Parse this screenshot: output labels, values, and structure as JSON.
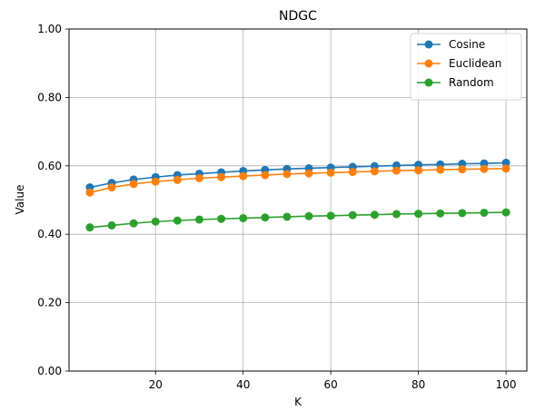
{
  "chart_data": {
    "type": "line",
    "title": "NDGC",
    "xlabel": "K",
    "ylabel": "Value",
    "x": [
      5,
      10,
      15,
      20,
      25,
      30,
      35,
      40,
      45,
      50,
      55,
      60,
      65,
      70,
      75,
      80,
      85,
      90,
      95,
      100
    ],
    "xlim": [
      0.25,
      104.75
    ],
    "ylim": [
      0.0,
      1.0
    ],
    "xticks": [
      20,
      40,
      60,
      80,
      100
    ],
    "xtick_labels": [
      "20",
      "40",
      "60",
      "80",
      "100"
    ],
    "yticks": [
      0.0,
      0.2,
      0.4,
      0.6,
      0.8,
      1.0
    ],
    "ytick_labels": [
      "0.00",
      "0.20",
      "0.40",
      "0.60",
      "0.80",
      "1.00"
    ],
    "grid": true,
    "legend_position": "top-right",
    "series": [
      {
        "name": "Cosine",
        "color": "#1f77b4",
        "values": [
          0.537,
          0.55,
          0.56,
          0.567,
          0.573,
          0.577,
          0.581,
          0.585,
          0.588,
          0.591,
          0.593,
          0.595,
          0.597,
          0.599,
          0.601,
          0.603,
          0.604,
          0.606,
          0.607,
          0.609
        ]
      },
      {
        "name": "Euclidean",
        "color": "#ff7f0e",
        "values": [
          0.522,
          0.537,
          0.547,
          0.554,
          0.559,
          0.564,
          0.567,
          0.57,
          0.573,
          0.576,
          0.578,
          0.58,
          0.582,
          0.584,
          0.586,
          0.587,
          0.589,
          0.59,
          0.591,
          0.592
        ]
      },
      {
        "name": "Random",
        "color": "#2ca02c",
        "values": [
          0.42,
          0.426,
          0.432,
          0.437,
          0.44,
          0.443,
          0.445,
          0.447,
          0.449,
          0.451,
          0.453,
          0.454,
          0.456,
          0.457,
          0.459,
          0.46,
          0.461,
          0.462,
          0.463,
          0.464
        ]
      }
    ]
  }
}
